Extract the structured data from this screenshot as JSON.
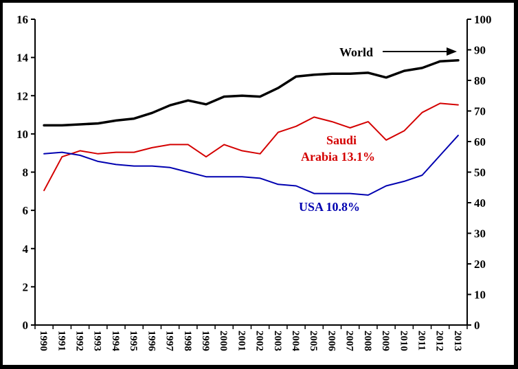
{
  "chart_data": {
    "type": "line",
    "title": "",
    "xlabel": "",
    "ylabel": "",
    "x": [
      "1990",
      "1991",
      "1992",
      "1993",
      "1994",
      "1995",
      "1996",
      "1997",
      "1998",
      "1999",
      "2000",
      "2001",
      "2002",
      "2003",
      "2004",
      "2005",
      "2006",
      "2007",
      "2008",
      "2009",
      "2010",
      "2011",
      "2012",
      "2013"
    ],
    "ylim_left": [
      0,
      16
    ],
    "yticks_left": [
      "0",
      "2",
      "4",
      "6",
      "8",
      "10",
      "12",
      "14",
      "16"
    ],
    "ylim_right": [
      0,
      100
    ],
    "yticks_right": [
      "0",
      "10",
      "20",
      "30",
      "40",
      "50",
      "60",
      "70",
      "80",
      "90",
      "100"
    ],
    "grid": false,
    "series": [
      {
        "name": "World",
        "axis": "left",
        "color": "#000000",
        "values": [
          10.45,
          10.45,
          10.5,
          10.55,
          10.7,
          10.8,
          11.1,
          11.5,
          11.75,
          11.55,
          11.95,
          12.0,
          11.95,
          12.4,
          13.0,
          13.1,
          13.15,
          13.15,
          13.2,
          12.95,
          13.3,
          13.45,
          13.8,
          13.85
        ]
      },
      {
        "name": "Saudi Arabia 13.1%",
        "axis": "right",
        "color": "#d40000",
        "values": [
          44,
          55,
          57,
          56,
          56.5,
          56.5,
          58,
          59,
          59,
          55,
          59,
          57,
          56,
          63,
          65,
          68,
          66.5,
          64.5,
          66.5,
          60.5,
          63.5,
          69.5,
          72.5,
          72
        ]
      },
      {
        "name": "USA 10.8%",
        "axis": "right",
        "color": "#0000b0",
        "values": [
          56,
          56.5,
          55.5,
          53.5,
          52.5,
          52,
          52,
          51.5,
          50,
          48.5,
          48.5,
          48.5,
          48,
          46,
          45.5,
          43,
          43,
          43,
          42.5,
          45.5,
          47,
          49,
          55.5,
          62
        ]
      }
    ],
    "annotations": {
      "world_label": "World",
      "saudi_label_line1": "Saudi",
      "saudi_label_line2": "Arabia 13.1%",
      "usa_label": "USA 10.8%"
    }
  }
}
